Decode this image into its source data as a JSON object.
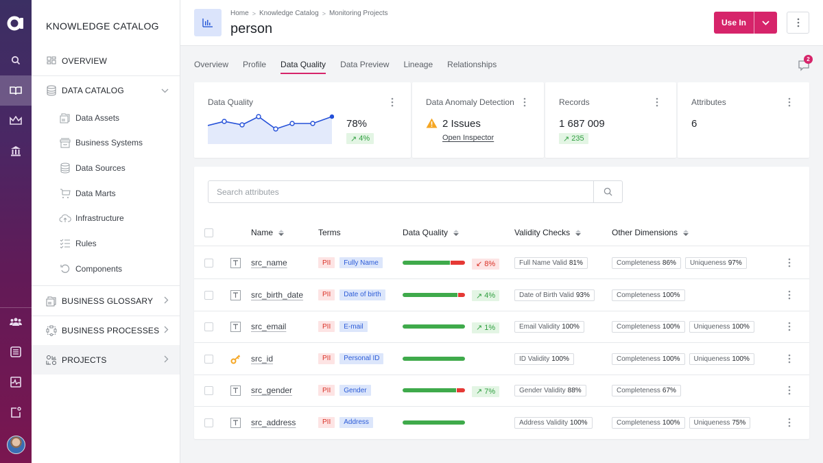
{
  "rail": {
    "logo": "a",
    "items": [
      {
        "icon": "search-icon"
      },
      {
        "icon": "book-icon",
        "active": true
      },
      {
        "icon": "crown-icon"
      },
      {
        "icon": "bank-icon"
      },
      {
        "icon": "users-icon"
      },
      {
        "icon": "list-icon"
      },
      {
        "icon": "pulse-monitor-icon"
      },
      {
        "icon": "notification-square-icon"
      }
    ]
  },
  "nav": {
    "title": "KNOWLEDGE CATALOG",
    "overview": "OVERVIEW",
    "data_catalog": "DATA CATALOG",
    "sub_items": [
      "Data Assets",
      "Business Systems",
      "Data Sources",
      "Data Marts",
      "Infrastructure",
      "Rules",
      "Components"
    ],
    "business_glossary": "BUSINESS GLOSSARY",
    "business_processes": "BUSINESS PROCESSES",
    "projects": "PROJECTS"
  },
  "header": {
    "breadcrumbs": [
      "Home",
      "Knowledge Catalog",
      "Monitoring Projects"
    ],
    "title": "person",
    "use_in_label": "Use In"
  },
  "tabs": [
    "Overview",
    "Profile",
    "Data Quality",
    "Data Preview",
    "Lineage",
    "Relationships"
  ],
  "active_tab": "Data Quality",
  "comments_count": "2",
  "kpis": {
    "data_quality": {
      "title": "Data Quality",
      "value": "78%",
      "delta": "4%",
      "sparkline": [
        78,
        80,
        78,
        82,
        76,
        78,
        78,
        81
      ]
    },
    "anomaly": {
      "title": "Data Anomaly Detection",
      "value": "2 Issues",
      "link": "Open Inspector"
    },
    "records": {
      "title": "Records",
      "value": "1 687 009",
      "delta": "235"
    },
    "attributes": {
      "title": "Attributes",
      "value": "6"
    }
  },
  "table": {
    "search_placeholder": "Search attributes",
    "columns": [
      "Name",
      "Terms",
      "Data Quality",
      "Validity Checks",
      "Other Dimensions"
    ],
    "rows": [
      {
        "type": "text",
        "name": "src_name",
        "pii": "PII",
        "term": "Fully Name",
        "dq_green": 70,
        "dq_red": 21,
        "delta_dir": "down",
        "delta": "8%",
        "checks": [
          {
            "label": "Full Name Valid",
            "value": "81%"
          }
        ],
        "dims": [
          {
            "label": "Completeness",
            "value": "86%"
          },
          {
            "label": "Uniqueness",
            "value": "97%"
          }
        ]
      },
      {
        "type": "text",
        "name": "src_birth_date",
        "pii": "PII",
        "term": "Date of birth",
        "dq_green": 80,
        "dq_red": 10,
        "delta_dir": "up",
        "delta": "4%",
        "checks": [
          {
            "label": "Date of Birth Valid",
            "value": "93%"
          }
        ],
        "dims": [
          {
            "label": "Completeness",
            "value": "100%"
          }
        ]
      },
      {
        "type": "text",
        "name": "src_email",
        "pii": "PII",
        "term": "E-mail",
        "dq_green": 91,
        "dq_red": 0,
        "delta_dir": "up",
        "delta": "1%",
        "checks": [
          {
            "label": "Email Validity",
            "value": "100%"
          }
        ],
        "dims": [
          {
            "label": "Completeness",
            "value": "100%"
          },
          {
            "label": "Uniqueness",
            "value": "100%"
          }
        ]
      },
      {
        "type": "key",
        "name": "src_id",
        "pii": "PII",
        "term": "Personal ID",
        "dq_green": 91,
        "dq_red": 0,
        "delta_dir": "",
        "delta": "",
        "checks": [
          {
            "label": "ID Validity",
            "value": "100%"
          }
        ],
        "dims": [
          {
            "label": "Completeness",
            "value": "100%"
          },
          {
            "label": "Uniqueness",
            "value": "100%"
          }
        ]
      },
      {
        "type": "text",
        "name": "src_gender",
        "pii": "PII",
        "term": "Gender",
        "dq_green": 78,
        "dq_red": 12,
        "delta_dir": "up",
        "delta": "7%",
        "checks": [
          {
            "label": "Gender Validity",
            "value": "88%"
          }
        ],
        "dims": [
          {
            "label": "Completeness",
            "value": "67%"
          }
        ]
      },
      {
        "type": "text",
        "name": "src_address",
        "pii": "PII",
        "term": "Address",
        "dq_green": 91,
        "dq_red": 0,
        "delta_dir": "",
        "delta": "",
        "checks": [
          {
            "label": "Address Validity",
            "value": "100%"
          }
        ],
        "dims": [
          {
            "label": "Completeness",
            "value": "100%"
          },
          {
            "label": "Uniqueness",
            "value": "75%"
          }
        ]
      }
    ]
  },
  "colors": {
    "accent": "#d6246a",
    "brand_blue": "#2b5bd7",
    "good": "#3faa4b",
    "bad": "#e53935",
    "warning": "#f5a623"
  }
}
